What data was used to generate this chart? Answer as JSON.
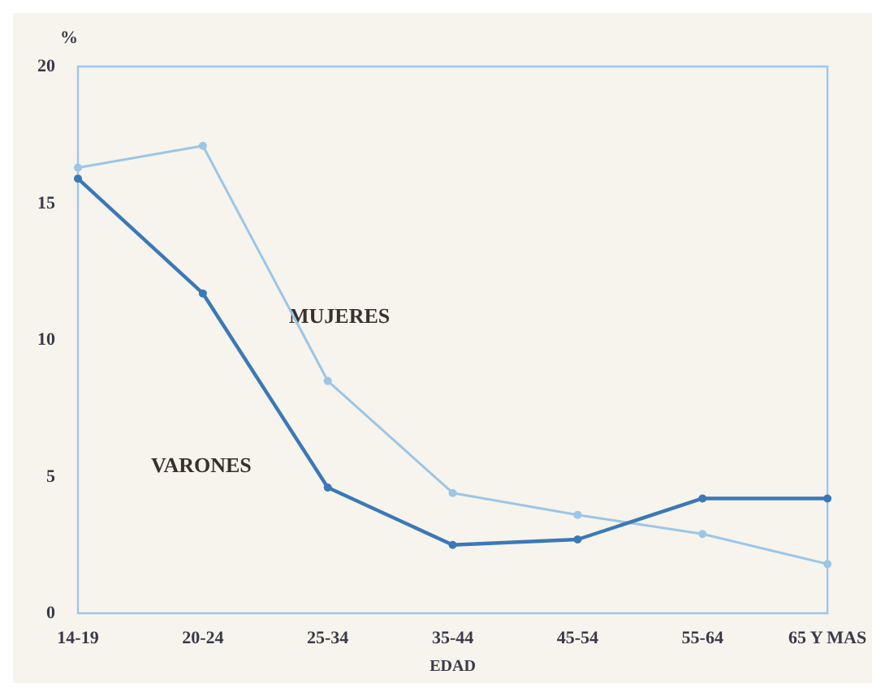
{
  "chart_data": {
    "type": "line",
    "ylabel": "%",
    "xlabel": "EDAD",
    "categories": [
      "14-19",
      "20-24",
      "25-34",
      "35-44",
      "45-54",
      "55-64",
      "65 Y MAS"
    ],
    "series": [
      {
        "name": "MUJERES",
        "color": "#9cc6e6",
        "values": [
          16.3,
          17.1,
          8.5,
          4.4,
          3.6,
          2.9,
          1.8
        ]
      },
      {
        "name": "VARONES",
        "color": "#3b78b8",
        "values": [
          15.9,
          11.7,
          4.6,
          2.5,
          2.7,
          4.2,
          4.2
        ]
      }
    ],
    "ylim": [
      0,
      20
    ],
    "yticks": [
      0,
      5,
      10,
      15,
      20
    ],
    "grid": false,
    "legend": false,
    "marker": "circle",
    "line_style": "solid"
  }
}
